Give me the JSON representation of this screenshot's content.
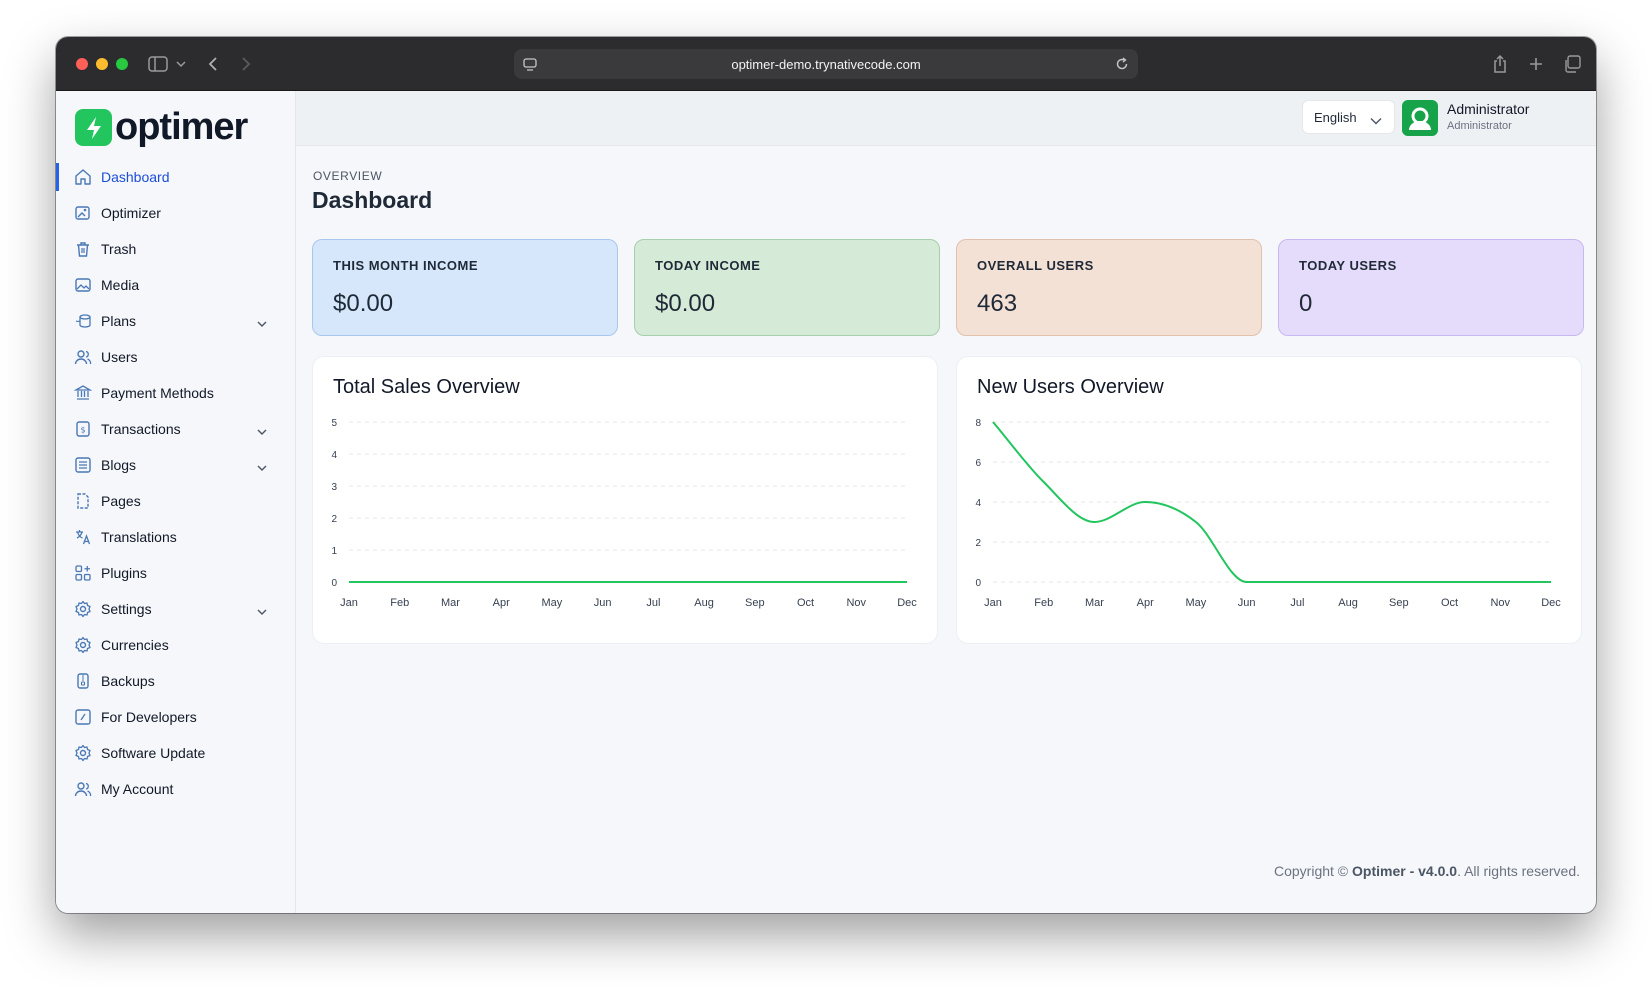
{
  "browser": {
    "url": "optimer-demo.trynativecode.com"
  },
  "brand": {
    "name": "optimer",
    "color": "#22c55e"
  },
  "sidebar": {
    "items": [
      {
        "label": "Dashboard",
        "icon": "home-icon",
        "active": true,
        "expandable": false
      },
      {
        "label": "Optimizer",
        "icon": "image-edit-icon",
        "expandable": false
      },
      {
        "label": "Trash",
        "icon": "trash-icon",
        "expandable": false
      },
      {
        "label": "Media",
        "icon": "image-icon",
        "expandable": false
      },
      {
        "label": "Plans",
        "icon": "coins-icon",
        "expandable": true
      },
      {
        "label": "Users",
        "icon": "users-icon",
        "expandable": false
      },
      {
        "label": "Payment Methods",
        "icon": "bank-icon",
        "expandable": false
      },
      {
        "label": "Transactions",
        "icon": "receipt-icon",
        "expandable": true
      },
      {
        "label": "Blogs",
        "icon": "list-icon",
        "expandable": true
      },
      {
        "label": "Pages",
        "icon": "pages-icon",
        "expandable": false
      },
      {
        "label": "Translations",
        "icon": "translate-icon",
        "expandable": false
      },
      {
        "label": "Plugins",
        "icon": "plugins-icon",
        "expandable": false
      },
      {
        "label": "Settings",
        "icon": "gear-icon",
        "expandable": true
      },
      {
        "label": "Currencies",
        "icon": "gear-icon",
        "expandable": false
      },
      {
        "label": "Backups",
        "icon": "backup-icon",
        "expandable": false
      },
      {
        "label": "For Developers",
        "icon": "code-icon",
        "expandable": false
      },
      {
        "label": "Software Update",
        "icon": "gear-icon",
        "expandable": false
      },
      {
        "label": "My Account",
        "icon": "users-icon",
        "expandable": false
      }
    ]
  },
  "topbar": {
    "language": "English",
    "user_name": "Administrator",
    "user_role": "Administrator"
  },
  "page": {
    "eyebrow": "OVERVIEW",
    "title": "Dashboard"
  },
  "stats": [
    {
      "label": "THIS MONTH INCOME",
      "value": "$0.00",
      "bg": "#d6e7fb",
      "border": "#a9c7ec"
    },
    {
      "label": "TODAY INCOME",
      "value": "$0.00",
      "bg": "#d5ead7",
      "border": "#a7cfad"
    },
    {
      "label": "OVERALL USERS",
      "value": "463",
      "bg": "#f3e1d6",
      "border": "#e2c2ad"
    },
    {
      "label": "TODAY USERS",
      "value": "0",
      "bg": "#e4dcfa",
      "border": "#c8b8f1"
    }
  ],
  "footer": {
    "prefix": "Copyright © ",
    "product": "Optimer - v4.0.0",
    "suffix": ". All rights reserved."
  },
  "chart_data": [
    {
      "type": "line",
      "title": "Total Sales Overview",
      "categories": [
        "Jan",
        "Feb",
        "Mar",
        "Apr",
        "May",
        "Jun",
        "Jul",
        "Aug",
        "Sep",
        "Oct",
        "Nov",
        "Dec"
      ],
      "series": [
        {
          "values": [
            0,
            0,
            0,
            0,
            0,
            0,
            0,
            0,
            0,
            0,
            0,
            0
          ],
          "color": "#22c55e"
        }
      ],
      "yticks": [
        0,
        1,
        2,
        3,
        4,
        5
      ],
      "ylim": [
        0,
        5
      ],
      "grid": true
    },
    {
      "type": "line",
      "title": "New Users Overview",
      "categories": [
        "Jan",
        "Feb",
        "Mar",
        "Apr",
        "May",
        "Jun",
        "Jul",
        "Aug",
        "Sep",
        "Oct",
        "Nov",
        "Dec"
      ],
      "series": [
        {
          "values": [
            8,
            5,
            3,
            4,
            3,
            0,
            0,
            0,
            0,
            0,
            0,
            0
          ],
          "color": "#22c55e"
        }
      ],
      "yticks": [
        0,
        2,
        4,
        6,
        8
      ],
      "ylim": [
        0,
        8
      ],
      "grid": true
    }
  ]
}
